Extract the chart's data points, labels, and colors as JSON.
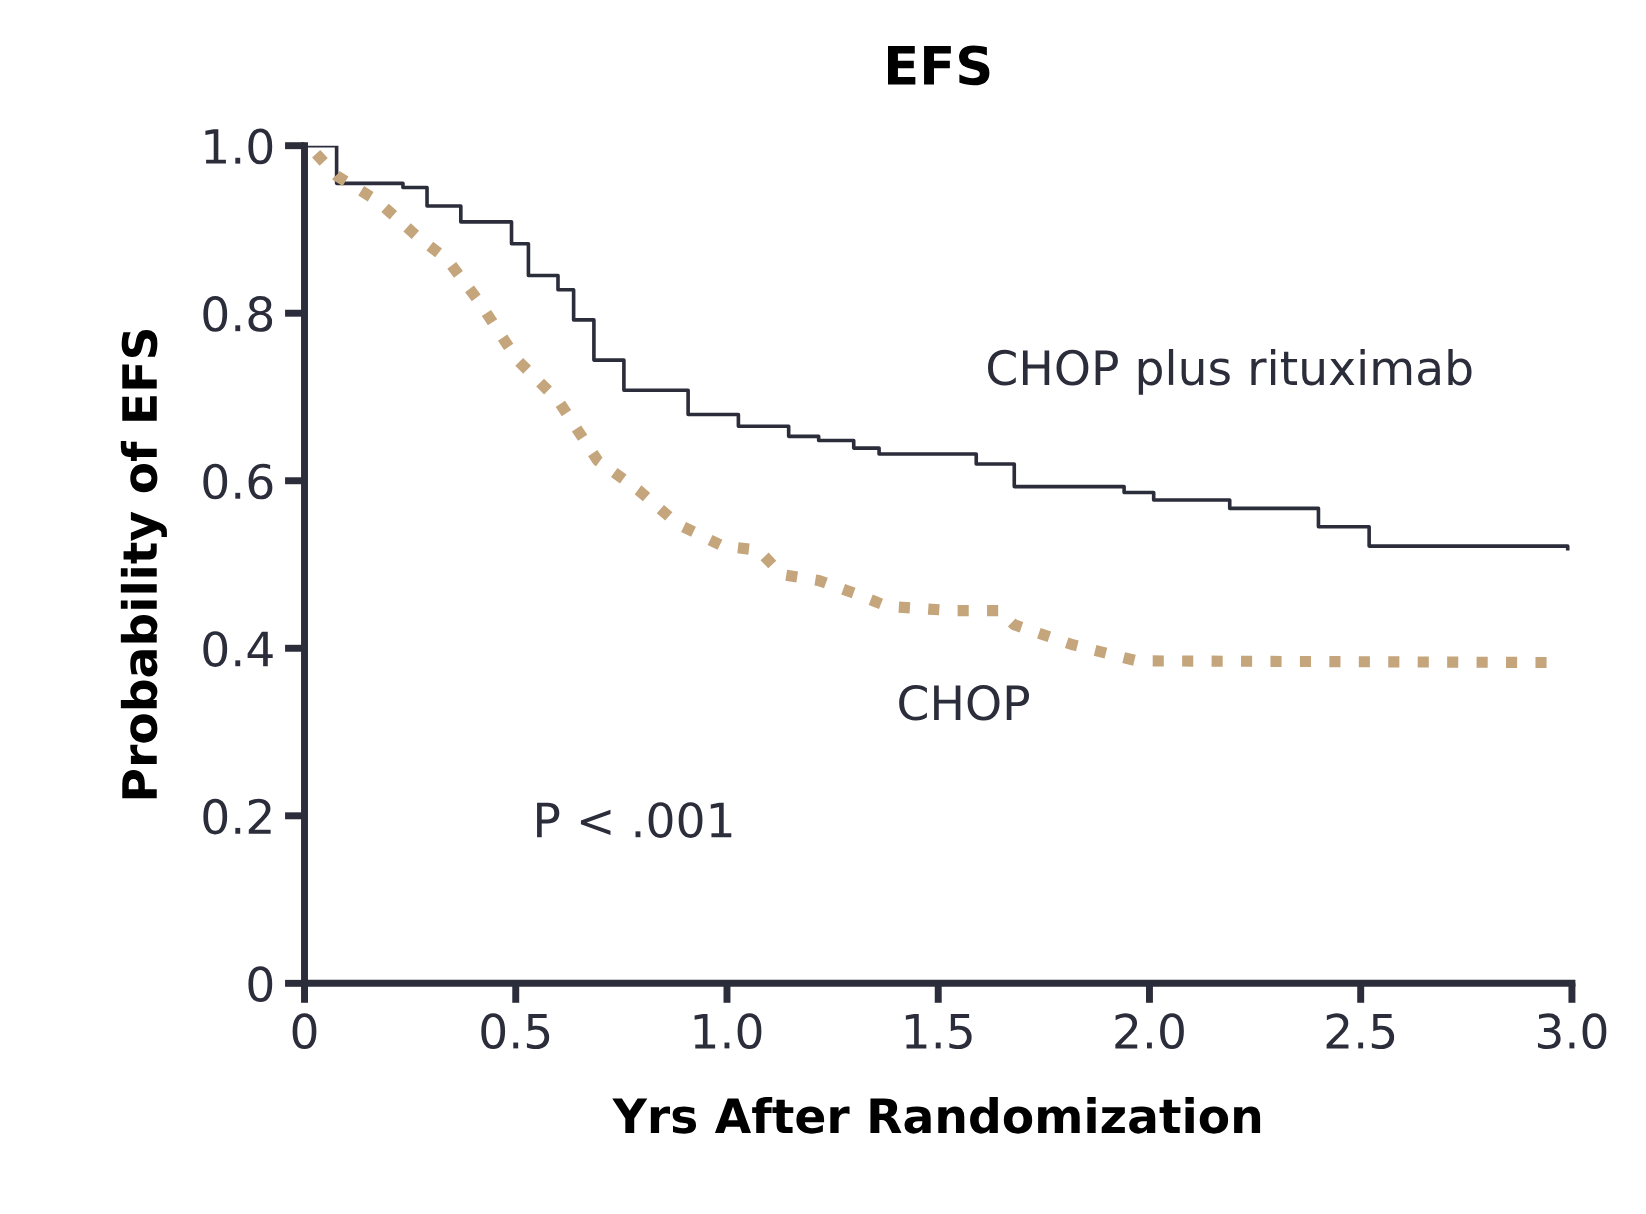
{
  "chart_data": {
    "type": "line",
    "title": "EFS",
    "xlabel": "Yrs After Randomization",
    "ylabel": "Probability of EFS",
    "xlim": [
      0,
      3.0
    ],
    "ylim": [
      0,
      1.0
    ],
    "xticks": [
      0,
      0.5,
      {
        "value": 1,
        "label": "1.0"
      },
      1.5,
      {
        "value": 2,
        "label": "2.0"
      },
      2.5,
      {
        "value": 3,
        "label": "3.0"
      }
    ],
    "yticks": [
      0,
      0.2,
      0.4,
      0.6,
      0.8,
      {
        "value": 1,
        "label": "1.0"
      }
    ],
    "grid": false,
    "legend": false,
    "marker": "none",
    "annotations": [
      "P < .001"
    ],
    "series": [
      {
        "name": "CHOP plus rituximab",
        "type": "step",
        "line_style": "solid",
        "color": "#2b2d3a",
        "x": [
          0.01,
          0.076,
          0.233,
          0.29,
          0.36,
          0.37,
          0.466,
          0.49,
          0.53,
          0.6,
          0.637,
          0.685,
          0.756,
          0.908,
          1.027,
          1.146,
          1.217,
          1.3,
          1.36,
          1.59,
          1.68,
          1.94,
          2.01,
          2.19,
          2.4,
          2.52,
          2.99
        ],
        "values": [
          1.0,
          0.955,
          0.95,
          0.928,
          0.928,
          0.909,
          0.909,
          0.883,
          0.845,
          0.828,
          0.792,
          0.744,
          0.708,
          0.679,
          0.665,
          0.653,
          0.648,
          0.639,
          0.632,
          0.62,
          0.593,
          0.586,
          0.577,
          0.567,
          0.545,
          0.522,
          0.519
        ]
      },
      {
        "name": "CHOP",
        "line_style": "dotted",
        "color": "#c4a57c",
        "x": [
          0.01,
          0.076,
          0.17,
          0.266,
          0.338,
          0.41,
          0.504,
          0.6,
          0.694,
          0.79,
          0.884,
          0.99,
          1.075,
          1.13,
          1.217,
          1.31,
          1.38,
          1.53,
          1.645,
          1.68,
          1.82,
          1.97,
          2.94
        ],
        "values": [
          1.0,
          0.964,
          0.935,
          0.892,
          0.864,
          0.816,
          0.744,
          0.696,
          0.624,
          0.589,
          0.548,
          0.522,
          0.517,
          0.488,
          0.481,
          0.464,
          0.45,
          0.445,
          0.445,
          0.428,
          0.404,
          0.385,
          0.383
        ]
      }
    ]
  }
}
